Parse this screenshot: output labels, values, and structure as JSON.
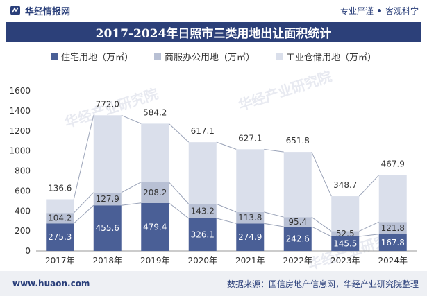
{
  "header": {
    "brand": "华经情报网",
    "tag1": "专业严谨",
    "tag2": "客观科学"
  },
  "watermark": "华经产业研究院",
  "chart_data": {
    "type": "bar",
    "stacked": true,
    "title": "2017-2024年日照市三类用地出让面积统计",
    "categories": [
      "2017年",
      "2018年",
      "2019年",
      "2020年",
      "2021年",
      "2022年",
      "2023年",
      "2024年"
    ],
    "series": [
      {
        "name": "住宅用地（万㎡）",
        "color": "#4a5f96",
        "values": [
          275.3,
          455.6,
          479.4,
          326.1,
          274.9,
          242.6,
          145.5,
          167.8
        ]
      },
      {
        "name": "商服办公用地（万㎡）",
        "color": "#b8c0d4",
        "values": [
          104.2,
          127.9,
          208.2,
          143.2,
          113.8,
          95.4,
          52.5,
          121.8
        ]
      },
      {
        "name": "工业仓储用地（万㎡）",
        "color": "#dadfeb",
        "values": [
          136.6,
          772.0,
          584.2,
          617.1,
          627.1,
          651.8,
          348.7,
          467.9
        ]
      }
    ],
    "yticks": [
      0,
      200,
      400,
      600,
      800,
      1000,
      1200,
      1400,
      1600
    ],
    "ylim": [
      0,
      1600
    ],
    "legend_position": "top"
  },
  "footer": {
    "site": "www.huaon.com",
    "source": "数据来源：国信房地产信息网，华经产业研究院整理"
  }
}
